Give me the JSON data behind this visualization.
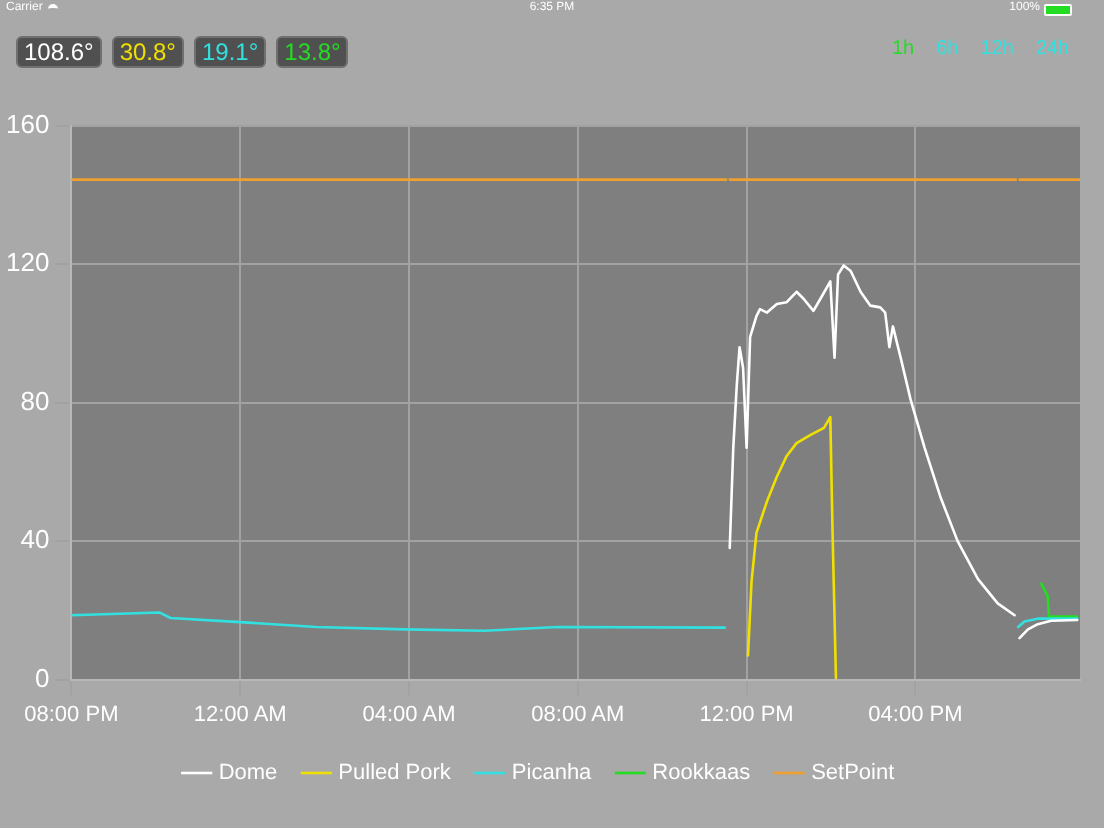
{
  "chart_data": {
    "type": "line",
    "xlim": [
      "--01-01T20:00",
      "--01-02T19:54"
    ],
    "ylim": [
      0,
      160
    ],
    "yticks": [
      0,
      40,
      80,
      120,
      160
    ],
    "xticks": [
      {
        "value": "--01-01T20:00",
        "label": "08:00 PM"
      },
      {
        "value": "--01-02T00:00",
        "label": "12:00 AM"
      },
      {
        "value": "--01-02T04:00",
        "label": "04:00 AM"
      },
      {
        "value": "--01-02T08:00",
        "label": "08:00 AM"
      },
      {
        "value": "--01-02T12:00",
        "label": "12:00 PM"
      },
      {
        "value": "--01-02T16:00",
        "label": "04:00 PM"
      }
    ],
    "grid": true,
    "legend": "bottom",
    "marker": "none",
    "line_style": "solid",
    "annotations": [
      "Carrier",
      "6:35 PM",
      "100%",
      "108.6°",
      "30.8°",
      "19.1°",
      "13.8°",
      "1h",
      "6h",
      "12h",
      "24h"
    ],
    "series": [
      {
        "name": "Dome",
        "color": "#ffffff",
        "x": [
          "--01-02T11:36",
          "--01-02T11:41",
          "--01-02T11:46",
          "--01-02T11:50",
          "--01-02T11:55",
          "--01-02T12:00",
          "--01-02T12:05",
          "--01-02T12:14",
          "--01-02T12:19",
          "--01-02T12:29",
          "--01-02T12:43",
          "--01-02T12:57",
          "--01-02T13:11",
          "--01-02T13:21",
          "--01-02T13:35",
          "--01-02T13:45",
          "--01-02T13:59",
          "--01-02T14:05",
          "--01-02T14:10",
          "--01-02T14:18",
          "--01-02T14:28",
          "--01-02T14:42",
          "--01-02T14:56",
          "--01-02T15:10",
          "--01-02T15:17",
          "--01-02T15:23",
          "--01-02T15:28",
          "--01-02T15:39",
          "--01-02T15:53",
          "--01-02T16:13",
          "--01-02T16:36",
          "--01-02T17:00",
          "--01-02T17:29",
          "--01-02T17:57",
          "--01-02T18:21",
          "--01-02T18:24",
          "--01-02T18:28",
          "--01-02T18:40",
          "--01-02T18:54",
          "--01-02T19:13",
          "--01-02T19:50"
        ],
        "values": [
          38,
          66.7,
          85,
          96,
          90,
          67,
          99,
          105,
          107,
          106,
          108.5,
          109,
          112,
          110,
          106.5,
          110,
          115,
          93,
          117,
          119.6,
          118,
          112,
          108,
          107.5,
          106,
          96,
          102,
          93,
          81,
          67,
          52.5,
          40,
          29,
          22,
          18.6,
          null,
          12,
          14.5,
          16,
          17,
          17.2
        ]
      },
      {
        "name": "Pulled Pork",
        "color": "#f0e000",
        "x": [
          "--01-02T12:02",
          "--01-02T12:07",
          "--01-02T12:14",
          "--01-02T12:29",
          "--01-02T12:43",
          "--01-02T12:57",
          "--01-02T13:11",
          "--01-02T13:31",
          "--01-02T13:50",
          "--01-02T13:59",
          "--01-02T14:02",
          "--01-02T14:07"
        ],
        "values": [
          7,
          28.3,
          42.4,
          51.5,
          58.6,
          64.6,
          68.3,
          70.7,
          72.7,
          75.8,
          44.4,
          0.4
        ]
      },
      {
        "name": "Picanha",
        "color": "#33e0e0",
        "x": [
          "--01-01T20:00",
          "--01-01T22:05",
          "--01-01T22:21",
          "--01-02T00:00",
          "--01-02T01:48",
          "--01-02T03:54",
          "--01-02T05:47",
          "--01-02T07:31",
          "--01-02T11:29",
          "--01-02T11:33",
          "--01-02T18:26",
          "--01-02T18:35",
          "--01-02T18:54",
          "--01-02T19:50"
        ],
        "values": [
          18.6,
          19.4,
          17.8,
          16.6,
          15.2,
          14.5,
          14.1,
          15.2,
          15,
          null,
          15.2,
          16.8,
          17.6,
          17.6
        ]
      },
      {
        "name": "Rookkaas",
        "color": "#22dd22",
        "x": [
          "--01-02T18:59",
          "--01-02T19:08",
          "--01-02T19:10",
          "--01-02T19:50"
        ],
        "values": [
          27.7,
          24.2,
          18.2,
          18.2
        ]
      },
      {
        "name": "SetPoint",
        "color": "#f0a030",
        "x": [
          "--01-01T20:00",
          "--01-02T11:31",
          "--01-02T11:34",
          "--01-02T11:36",
          "--01-02T18:23",
          "--01-02T18:25",
          "--01-02T18:28",
          "--01-02T19:54"
        ],
        "values": [
          144.4,
          144.4,
          null,
          144.4,
          144.4,
          null,
          144.4,
          144.4
        ]
      }
    ]
  }
}
